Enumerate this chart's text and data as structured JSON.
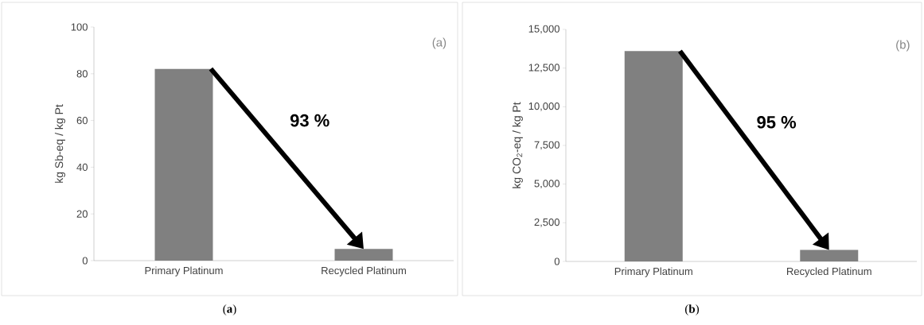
{
  "chart_data": [
    {
      "type": "bar",
      "categories": [
        "Primary Platinum",
        "Recycled Platinum"
      ],
      "values": [
        82.1,
        5.0
      ],
      "color": "#808080",
      "ylabel": "kg Sb-eq / kg Pt",
      "ylim": [
        0,
        100
      ],
      "yticks": [
        0,
        20,
        40,
        60,
        80,
        100
      ],
      "annotations": [
        "93 %",
        "(a)",
        "(**a**)"
      ]
    },
    {
      "type": "bar",
      "categories": [
        "Primary Platinum",
        "Recycled Platinum"
      ],
      "values": [
        13600,
        740
      ],
      "color": "#808080",
      "ylabel": "kg CO$_{2}$-eq / kg Pt",
      "ylim": [
        0,
        15000
      ],
      "yticks": [
        {
          "value": 0,
          "label": "0"
        },
        {
          "value": 2500,
          "label": "2,500"
        },
        {
          "value": 5000,
          "label": "5,000"
        },
        {
          "value": 7500,
          "label": "7,500"
        },
        {
          "value": 10000,
          "label": "10,000"
        },
        {
          "value": 12500,
          "label": "12,500"
        },
        {
          "value": 15000,
          "label": "15,000"
        }
      ],
      "annotations": [
        "95 %",
        "(b)",
        "(**b**)"
      ]
    }
  ]
}
